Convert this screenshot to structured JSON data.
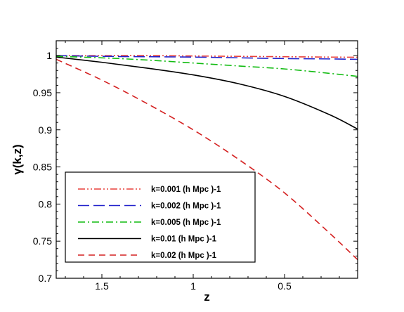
{
  "chart_data": {
    "type": "line",
    "xlabel": "z",
    "ylabel": "γ(k,z)",
    "xlim": [
      1.75,
      0.1
    ],
    "ylim": [
      0.7,
      1.02
    ],
    "x_reversed": true,
    "xticks": [
      1.5,
      1,
      0.5
    ],
    "xtick_labels": [
      "1.5",
      "1",
      "0.5"
    ],
    "yticks": [
      0.7,
      0.75,
      0.8,
      0.85,
      0.9,
      0.95,
      1
    ],
    "ytick_labels": [
      "0.7",
      "0.75",
      "0.8",
      "0.85",
      "0.9",
      "0.95",
      "1"
    ],
    "grid": false,
    "legend_position": "bottom-left",
    "series": [
      {
        "name": "k=0.001  (h Mpc )-1",
        "color": "#e8413c",
        "dash": "dash-dot-dot",
        "x": [
          1.75,
          1.5,
          1.25,
          1.0,
          0.75,
          0.5,
          0.25,
          0.1
        ],
        "y": [
          1.0,
          1.0,
          1.0,
          0.9995,
          0.999,
          0.9985,
          0.998,
          0.9978
        ]
      },
      {
        "name": "k=0.002  (h Mpc )-1",
        "color": "#2222cc",
        "dash": "long-dash",
        "x": [
          1.75,
          1.5,
          1.25,
          1.0,
          0.75,
          0.5,
          0.25,
          0.1
        ],
        "y": [
          1.0,
          0.999,
          0.9985,
          0.998,
          0.997,
          0.996,
          0.9955,
          0.995
        ]
      },
      {
        "name": "k=0.005  (h Mpc )-1",
        "color": "#11bb11",
        "dash": "dash-dot",
        "x": [
          1.75,
          1.5,
          1.25,
          1.0,
          0.75,
          0.5,
          0.25,
          0.1
        ],
        "y": [
          0.999,
          0.997,
          0.994,
          0.99,
          0.986,
          0.982,
          0.976,
          0.972
        ]
      },
      {
        "name": "k=0.01  (h Mpc )-1",
        "color": "#000000",
        "dash": "solid",
        "x": [
          1.75,
          1.5,
          1.25,
          1.0,
          0.75,
          0.5,
          0.25,
          0.1
        ],
        "y": [
          0.998,
          0.991,
          0.983,
          0.974,
          0.962,
          0.945,
          0.92,
          0.901
        ]
      },
      {
        "name": "k=0.02  (h Mpc )-1",
        "color": "#d42020",
        "dash": "dash",
        "x": [
          1.75,
          1.5,
          1.25,
          1.0,
          0.75,
          0.5,
          0.25,
          0.1
        ],
        "y": [
          0.995,
          0.967,
          0.935,
          0.9,
          0.86,
          0.815,
          0.76,
          0.725
        ]
      }
    ]
  }
}
